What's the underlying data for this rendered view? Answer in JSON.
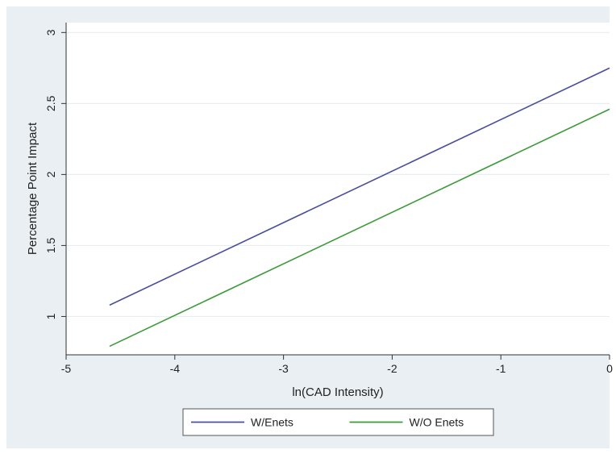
{
  "chart_data": {
    "type": "line",
    "title": "",
    "xlabel": "ln(CAD Intensity)",
    "ylabel": "Percentage Point Impact",
    "xlim": [
      -5,
      0
    ],
    "ylim": [
      0.73,
      3.07
    ],
    "x_ticks": [
      "-5",
      "-4",
      "-3",
      "-2",
      "-1",
      "0"
    ],
    "y_ticks": [
      "1",
      "1.5",
      "2",
      "2.5",
      "3"
    ],
    "grid": true,
    "legend_position": "bottom",
    "series": [
      {
        "name": "W/Enets",
        "color": "#4a4f9c",
        "x": [
          -4.6,
          0
        ],
        "y": [
          1.08,
          2.75
        ]
      },
      {
        "name": "W/O Enets",
        "color": "#3e9a3a",
        "x": [
          -4.6,
          0
        ],
        "y": [
          0.79,
          2.46
        ]
      }
    ]
  }
}
